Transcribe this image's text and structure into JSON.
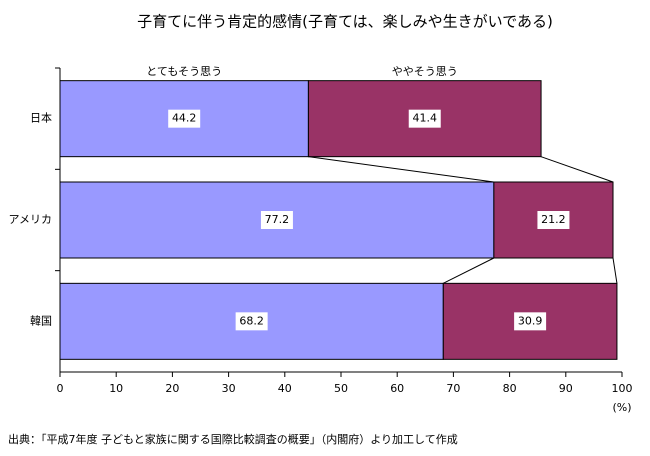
{
  "chart_data": {
    "type": "stacked-bar-horizontal",
    "title": "子育てに伴う肯定的感情(子育ては、楽しみや生きがいである)",
    "categories": [
      "日本",
      "アメリカ",
      "韓国"
    ],
    "series": [
      {
        "name": "とてもそう思う",
        "color": "#9999ff",
        "values": [
          44.2,
          77.2,
          68.2
        ]
      },
      {
        "name": "ややそう思う",
        "color": "#993366",
        "values": [
          41.4,
          21.2,
          30.9
        ]
      }
    ],
    "xlim": [
      0,
      100
    ],
    "xticks": [
      0,
      10,
      20,
      30,
      40,
      50,
      60,
      70,
      80,
      90,
      100
    ],
    "x_label": "(%)",
    "source": "出典：「平成7年度 子どもと家族に関する国際比較調査の概要」（内閣府）より加工して作成"
  }
}
